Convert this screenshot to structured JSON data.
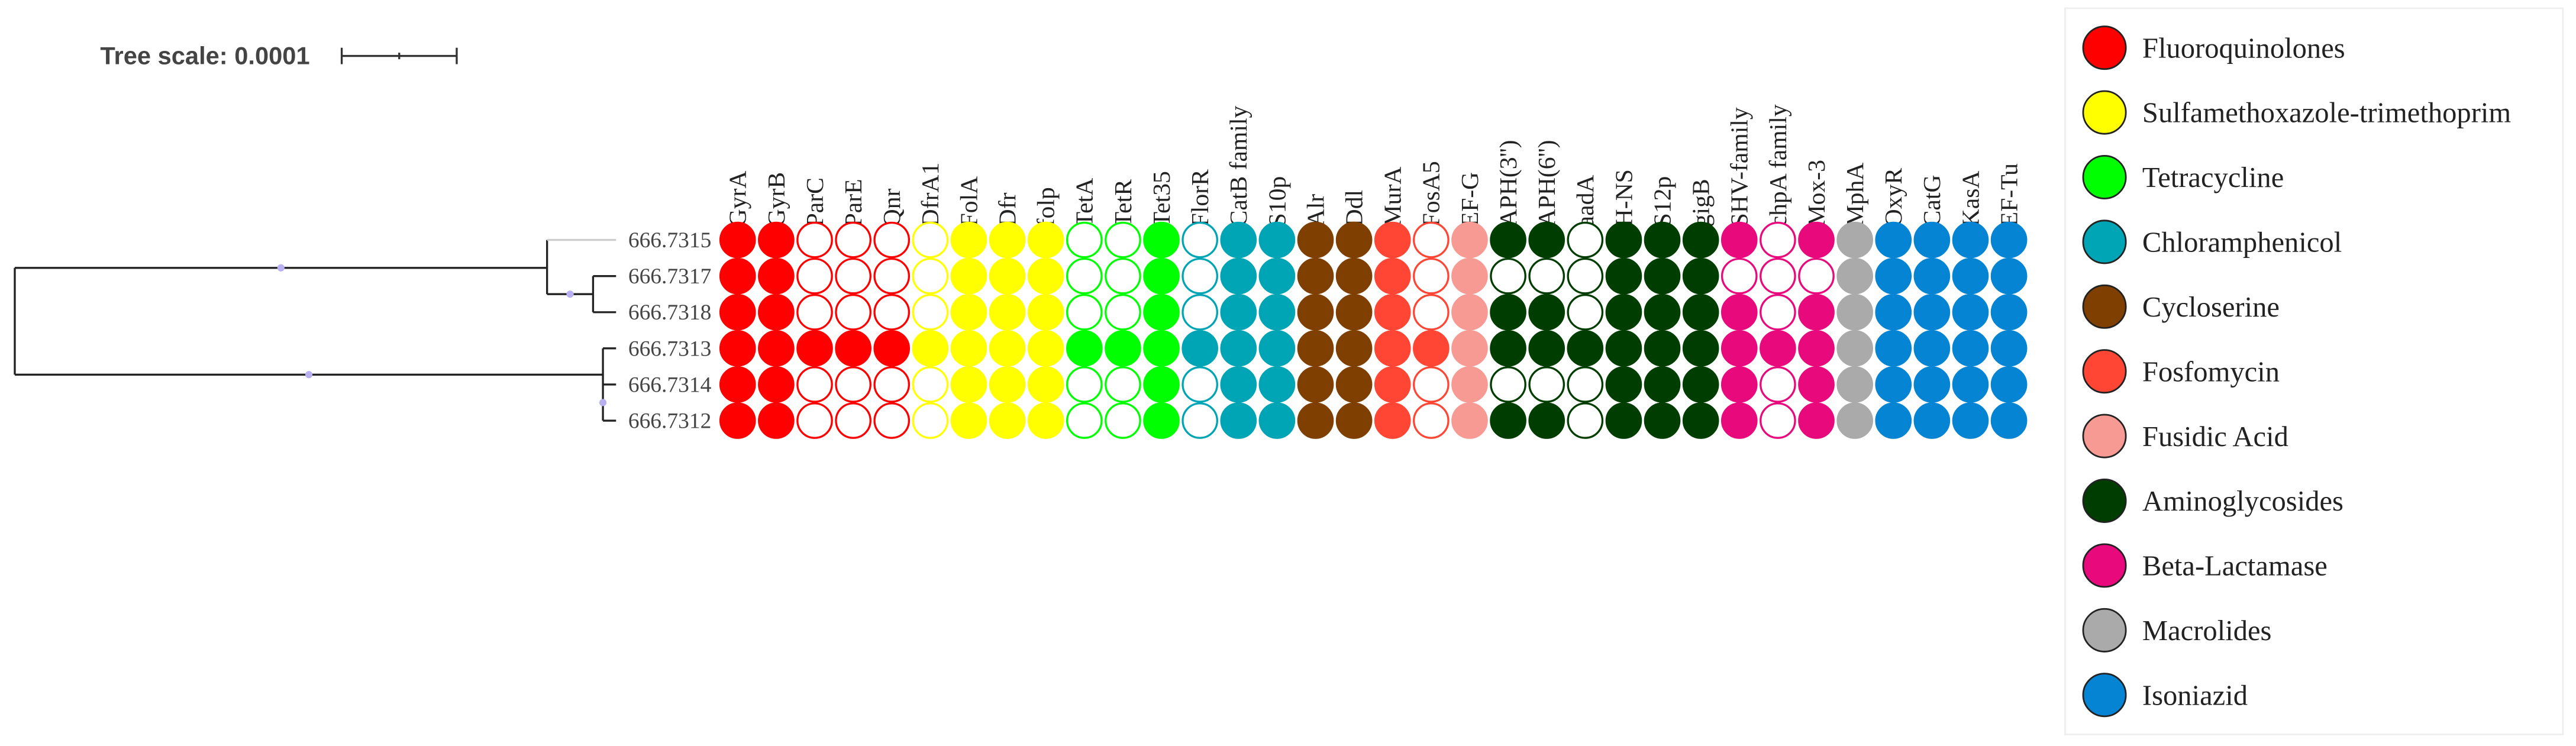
{
  "tree_scale": "Tree scale: 0.0001",
  "taxa": [
    {
      "label": "666.7315",
      "values": [
        1,
        1,
        0,
        0,
        0,
        0,
        1,
        1,
        1,
        0,
        0,
        1,
        0,
        1,
        1,
        1,
        1,
        1,
        0,
        1,
        1,
        1,
        0,
        1,
        1,
        1,
        1,
        0,
        1,
        1,
        1,
        1,
        1,
        1
      ]
    },
    {
      "label": "666.7317",
      "values": [
        1,
        1,
        0,
        0,
        0,
        0,
        1,
        1,
        1,
        0,
        0,
        1,
        0,
        1,
        1,
        1,
        1,
        1,
        0,
        1,
        0,
        0,
        0,
        1,
        1,
        1,
        0,
        0,
        0,
        1,
        1,
        1,
        1,
        1
      ]
    },
    {
      "label": "666.7318",
      "values": [
        1,
        1,
        0,
        0,
        0,
        0,
        1,
        1,
        1,
        0,
        0,
        1,
        0,
        1,
        1,
        1,
        1,
        1,
        0,
        1,
        1,
        1,
        0,
        1,
        1,
        1,
        1,
        0,
        1,
        1,
        1,
        1,
        1,
        1
      ]
    },
    {
      "label": "666.7313",
      "values": [
        1,
        1,
        1,
        1,
        1,
        1,
        1,
        1,
        1,
        1,
        1,
        1,
        1,
        1,
        1,
        1,
        1,
        1,
        1,
        1,
        1,
        1,
        1,
        1,
        1,
        1,
        1,
        1,
        1,
        1,
        1,
        1,
        1,
        1
      ]
    },
    {
      "label": "666.7314",
      "values": [
        1,
        1,
        0,
        0,
        0,
        0,
        1,
        1,
        1,
        0,
        0,
        1,
        0,
        1,
        1,
        1,
        1,
        1,
        0,
        1,
        0,
        0,
        0,
        1,
        1,
        1,
        1,
        0,
        1,
        1,
        1,
        1,
        1,
        1
      ]
    },
    {
      "label": "666.7312",
      "values": [
        1,
        1,
        0,
        0,
        0,
        0,
        1,
        1,
        1,
        0,
        0,
        1,
        0,
        1,
        1,
        1,
        1,
        1,
        0,
        1,
        1,
        1,
        0,
        1,
        1,
        1,
        1,
        0,
        1,
        1,
        1,
        1,
        1,
        1
      ]
    }
  ],
  "legend": [
    {
      "label": "Fluoroquinolones",
      "color": "#ff0000",
      "columns": [
        "GyrA",
        "GyrB",
        "ParC",
        "ParE",
        "Qnr"
      ]
    },
    {
      "label": "Sulfamethoxazole-trimethoprim",
      "color": "#ffff00",
      "columns": [
        "DfrA1",
        "FolA",
        "Dfr",
        "folp"
      ]
    },
    {
      "label": "Tetracycline",
      "color": "#00ff00",
      "columns": [
        "TetA",
        "TetR",
        "Tet35"
      ]
    },
    {
      "label": "Chloramphenicol",
      "color": "#00a5b5",
      "columns": [
        "FlorR",
        "CatB family",
        "S10p"
      ]
    },
    {
      "label": "Cycloserine",
      "color": "#7f3f00",
      "columns": [
        "Alr",
        "Ddl"
      ]
    },
    {
      "label": "Fosfomycin",
      "color": "#ff4533",
      "columns": [
        "MurA",
        "FosA5"
      ]
    },
    {
      "label": "Fusidic Acid",
      "color": "#f89a94",
      "columns": [
        "EF-G"
      ]
    },
    {
      "label": "Aminoglycosides",
      "color": "#003d00",
      "columns": [
        "APH(3'')",
        "APH(6'')",
        "aadA",
        "H-NS",
        "S12p",
        "gigB"
      ]
    },
    {
      "label": "Beta-Lactamase",
      "color": "#e8097d",
      "columns": [
        "SHV-family",
        "chpA family",
        "Mox-3"
      ]
    },
    {
      "label": "Macrolides",
      "color": "#aaaaaa",
      "columns": [
        "MphA"
      ]
    },
    {
      "label": "Isoniazid",
      "color": "#0584d3",
      "columns": [
        "OxyR",
        "CatG",
        "KasA",
        "EF-Tu"
      ]
    }
  ]
}
